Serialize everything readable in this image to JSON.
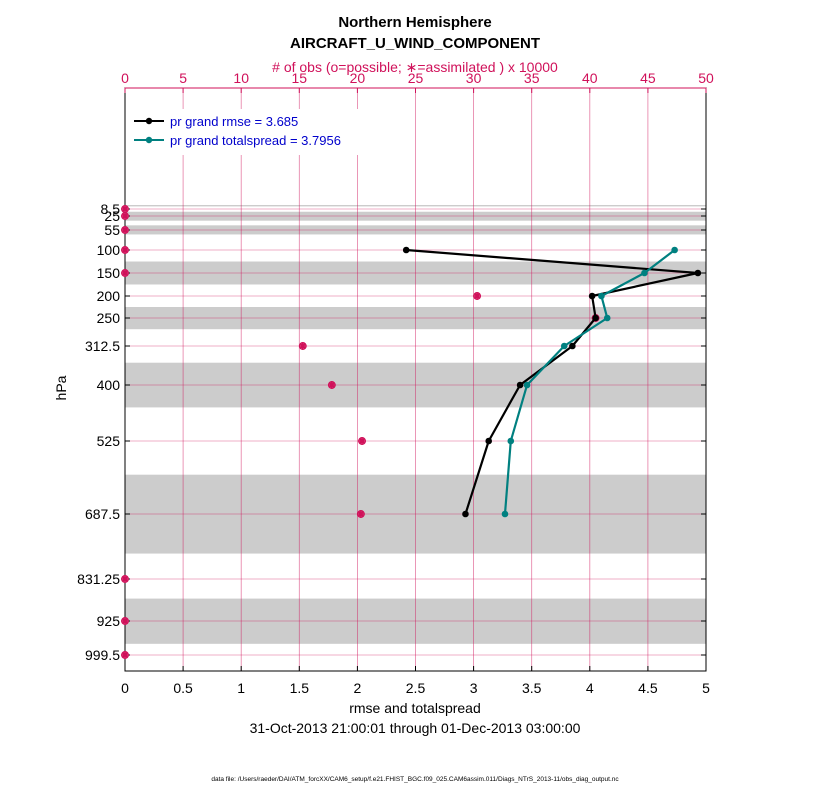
{
  "chart_data": {
    "type": "line",
    "title": "Northern Hemisphere",
    "subtitle": "AIRCRAFT_U_WIND_COMPONENT",
    "top_axis_label": "# of obs (o=possible; ∗=assimilated ) x 10000",
    "xlabel": "rmse and totalspread",
    "ylabel": "hPa",
    "date_range": "31-Oct-2013 21:00:01 through 01-Dec-2013 03:00:00",
    "data_file": "data file: /Users/raeder/DAI/ATM_forcXX/CAM6_setup/f.e21.FHIST_BGC.f09_025.CAM6assim.011/Diags_NTrS_2013-11/obs_diag_output.nc",
    "xlim": [
      0,
      5
    ],
    "x_ticks": [
      0,
      0.5,
      1,
      1.5,
      2,
      2.5,
      3,
      3.5,
      4,
      4.5,
      5
    ],
    "x_tick_labels": [
      "0",
      "0.5",
      "1",
      "1.5",
      "2",
      "2.5",
      "3",
      "3.5",
      "4",
      "4.5",
      "5"
    ],
    "top_xlim": [
      0,
      50
    ],
    "top_ticks": [
      0,
      5,
      10,
      15,
      20,
      25,
      30,
      35,
      40,
      45,
      50
    ],
    "top_tick_labels": [
      "0",
      "5",
      "10",
      "15",
      "20",
      "25",
      "30",
      "35",
      "40",
      "45",
      "50"
    ],
    "y_levels": [
      8.5,
      25,
      55,
      100,
      150,
      200,
      250,
      312.5,
      400,
      525,
      687.5,
      831.25,
      925,
      999.5
    ],
    "y_tick_labels": [
      "8.5",
      "25",
      "55",
      "100",
      "150",
      "200",
      "250",
      "312.5",
      "400",
      "525",
      "687.5",
      "831.25",
      "925",
      "999.5"
    ],
    "shaded_bands_hpa": [
      [
        0,
        3
      ],
      [
        15,
        35
      ],
      [
        45,
        65
      ],
      [
        125,
        175
      ],
      [
        225,
        275
      ],
      [
        350,
        450
      ],
      [
        600,
        775
      ],
      [
        875,
        975
      ]
    ],
    "series": [
      {
        "name": "pr grand rmse = 3.685",
        "color": "#000000",
        "points": [
          {
            "level": 100,
            "value": 2.42
          },
          {
            "level": 150,
            "value": 4.93
          },
          {
            "level": 200,
            "value": 4.02
          },
          {
            "level": 250,
            "value": 4.05
          },
          {
            "level": 312.5,
            "value": 3.85
          },
          {
            "level": 400,
            "value": 3.4
          },
          {
            "level": 525,
            "value": 3.13
          },
          {
            "level": 687.5,
            "value": 2.93
          }
        ]
      },
      {
        "name": "pr grand totalspread = 3.7956",
        "color": "#008080",
        "points": [
          {
            "level": 100,
            "value": 4.73
          },
          {
            "level": 150,
            "value": 4.47
          },
          {
            "level": 200,
            "value": 4.1
          },
          {
            "level": 250,
            "value": 4.15
          },
          {
            "level": 312.5,
            "value": 3.78
          },
          {
            "level": 400,
            "value": 3.46
          },
          {
            "level": 525,
            "value": 3.32
          },
          {
            "level": 687.5,
            "value": 3.27
          }
        ]
      }
    ],
    "obs_counts": {
      "color": "#d0115a",
      "units": "x 10000",
      "points": [
        {
          "level": 8.5,
          "possible": 0,
          "assimilated": 0
        },
        {
          "level": 25,
          "possible": 0,
          "assimilated": 0
        },
        {
          "level": 55,
          "possible": 0,
          "assimilated": 0
        },
        {
          "level": 100,
          "possible": 0,
          "assimilated": 0
        },
        {
          "level": 150,
          "possible": 0,
          "assimilated": 0
        },
        {
          "level": 200,
          "possible": 30.3,
          "assimilated": 30.3
        },
        {
          "level": 250,
          "possible": 40.5,
          "assimilated": 40.5
        },
        {
          "level": 312.5,
          "possible": 15.3,
          "assimilated": 15.3
        },
        {
          "level": 400,
          "possible": 17.8,
          "assimilated": 17.8
        },
        {
          "level": 525,
          "possible": 20.4,
          "assimilated": 20.4
        },
        {
          "level": 687.5,
          "possible": 20.3,
          "assimilated": 20.3
        },
        {
          "level": 831.25,
          "possible": 0,
          "assimilated": 0
        },
        {
          "level": 925,
          "possible": 0,
          "assimilated": 0
        },
        {
          "level": 999.5,
          "possible": 0,
          "assimilated": 0
        }
      ]
    },
    "colors": {
      "band": "#cccccc",
      "grid": "#d0115a",
      "obs": "#d0115a",
      "legend_text": "#0000cc"
    }
  }
}
